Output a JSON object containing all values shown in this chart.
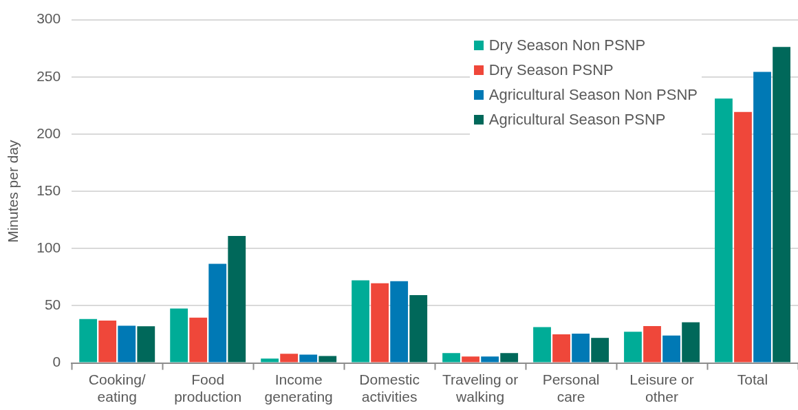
{
  "chart_data": {
    "type": "bar",
    "ylabel": "Minutes per day",
    "categories": [
      "Cooking/ eating",
      "Food production",
      "Income generating",
      "Domestic activities",
      "Traveling or walking",
      "Personal care",
      "Leisure or other",
      "Total"
    ],
    "series": [
      {
        "name": "Dry Season Non PSNP",
        "color": "#00ac97",
        "values": [
          38.4,
          47.5,
          3.8,
          72.2,
          8.7,
          31.3,
          27.2,
          231
        ]
      },
      {
        "name": "Dry Season PSNP",
        "color": "#ef473a",
        "values": [
          37.1,
          39.6,
          8.1,
          69.7,
          5.6,
          25,
          32.2,
          219.4
        ]
      },
      {
        "name": "Agricultural Season Non PSNP",
        "color": "#0079b5",
        "values": [
          32.6,
          86.6,
          7.3,
          71.5,
          5.6,
          25.6,
          23.9,
          254.4
        ]
      },
      {
        "name": "Agricultural Season PSNP",
        "color": "#00685a",
        "values": [
          32.1,
          111,
          6.1,
          59.3,
          8.7,
          21.9,
          35.5,
          276.2
        ]
      }
    ],
    "ylim": [
      0,
      300
    ],
    "yticks": [
      0,
      50,
      100,
      150,
      200,
      250,
      300
    ],
    "grid": "y",
    "legend": "top right"
  }
}
